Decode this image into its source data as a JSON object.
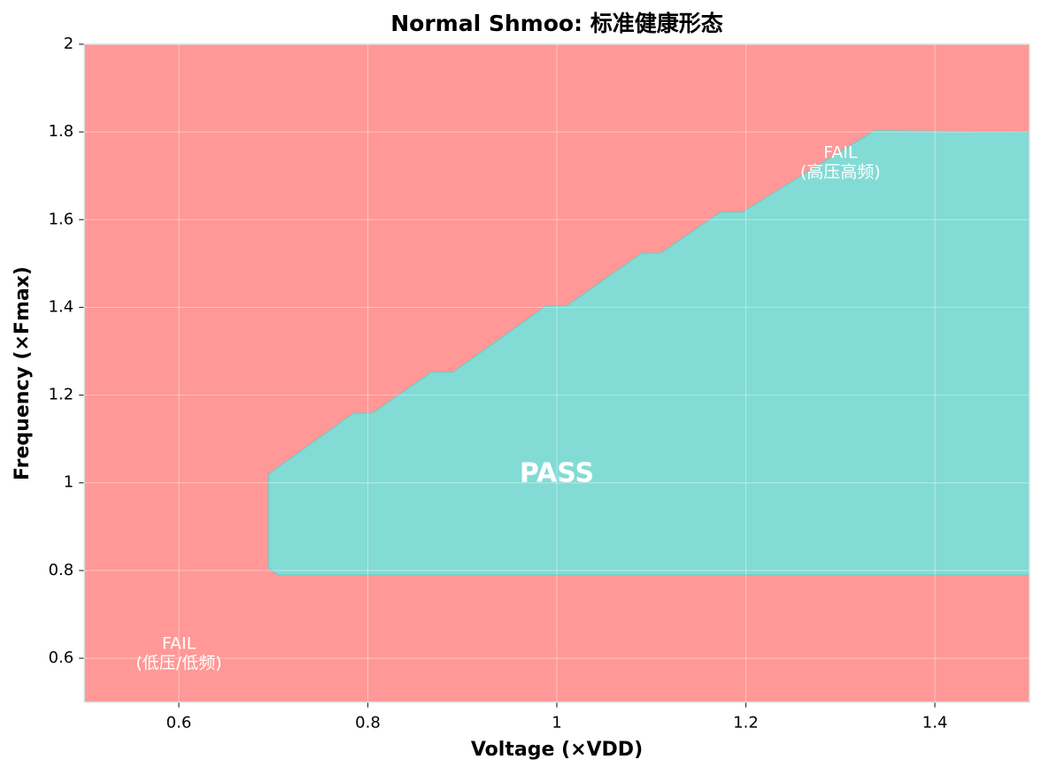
{
  "chart_data": {
    "type": "shmoo",
    "title": "Normal Shmoo: 标准健康形态",
    "x_label": "Voltage (×VDD)",
    "y_label": "Frequency (×Fmax)",
    "xlim": [
      0.5,
      1.5
    ],
    "ylim": [
      0.5,
      2.0
    ],
    "xticks": [
      0.6,
      0.8,
      1.0,
      1.2,
      1.4
    ],
    "yticks": [
      0.6,
      0.8,
      1.0,
      1.2,
      1.4,
      1.6,
      1.8,
      2.0
    ],
    "grid": true,
    "fail_color": "#ff9896",
    "pass_color": "#82dbd5",
    "pass_region": {
      "x": [
        0.695,
        0.785,
        0.805,
        0.867,
        0.89,
        0.988,
        1.01,
        1.09,
        1.11,
        1.173,
        1.196,
        1.336,
        1.5,
        1.5,
        0.705,
        0.695
      ],
      "y": [
        1.02,
        1.159,
        1.159,
        1.252,
        1.252,
        1.403,
        1.403,
        1.524,
        1.524,
        1.617,
        1.617,
        1.803,
        1.8,
        0.79,
        0.79,
        0.805
      ]
    },
    "annotations": [
      {
        "lines": [
          "PASS"
        ],
        "x": 1.0,
        "y": 1.02,
        "bold": true
      },
      {
        "lines": [
          "FAIL",
          "(高压高频)"
        ],
        "x": 1.3,
        "y": 1.73,
        "bold": false
      },
      {
        "lines": [
          "FAIL",
          "(低压/低频)"
        ],
        "x": 0.6,
        "y": 0.61,
        "bold": false
      }
    ]
  }
}
